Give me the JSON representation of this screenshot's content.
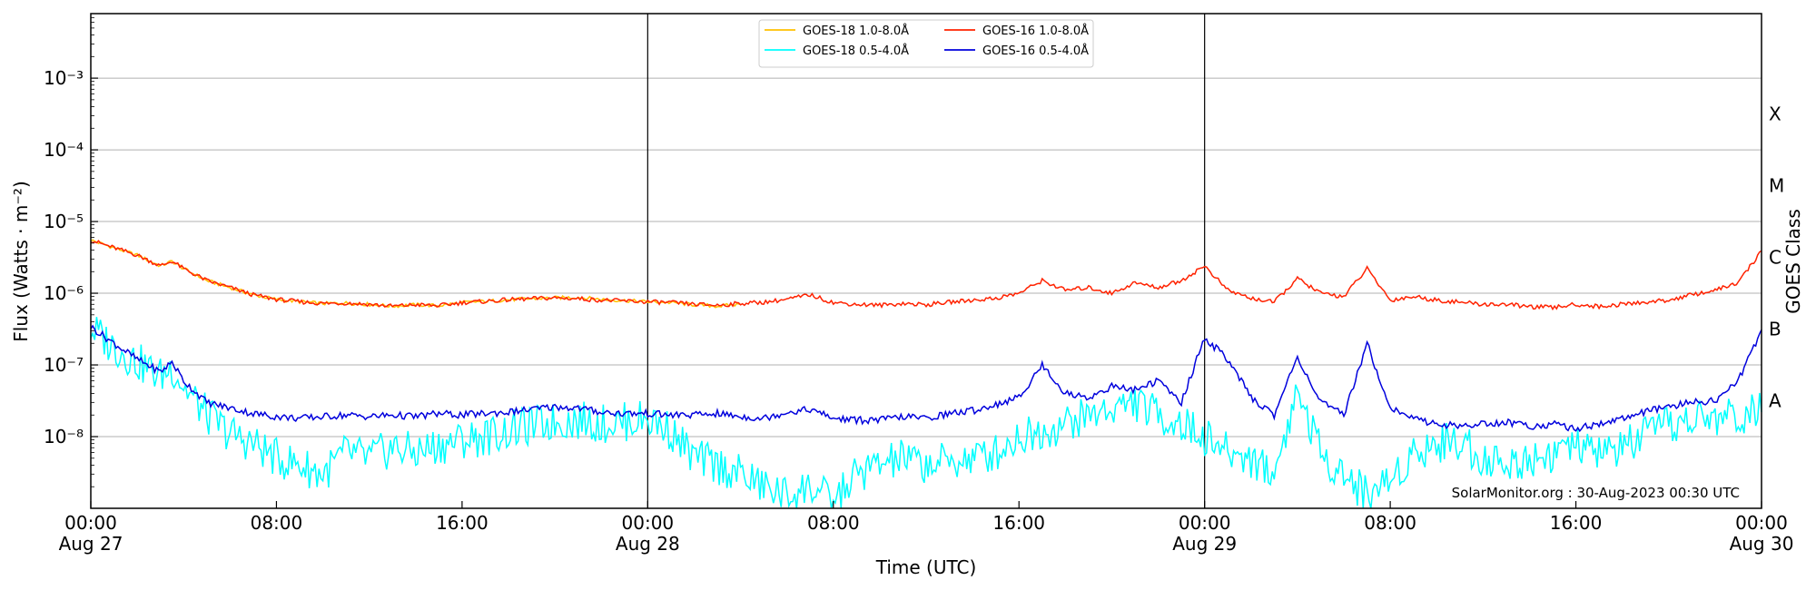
{
  "chart_data": {
    "type": "line",
    "xlabel": "Time (UTC)",
    "ylabel": "Flux (Watts · m⁻²)",
    "ylabel_right": "GOES Class",
    "y_scale": "log",
    "ylim_exponent": [
      -9,
      -2.1
    ],
    "y_ticks": [
      {
        "exp": -8,
        "label": "10⁻⁸"
      },
      {
        "exp": -7,
        "label": "10⁻⁷"
      },
      {
        "exp": -6,
        "label": "10⁻⁶"
      },
      {
        "exp": -5,
        "label": "10⁻⁵"
      },
      {
        "exp": -4,
        "label": "10⁻⁴"
      },
      {
        "exp": -3,
        "label": "10⁻³"
      }
    ],
    "goes_classes": [
      {
        "label": "A",
        "exp": -7.5
      },
      {
        "label": "B",
        "exp": -6.5
      },
      {
        "label": "C",
        "exp": -5.5
      },
      {
        "label": "M",
        "exp": -4.5
      },
      {
        "label": "X",
        "exp": -3.5
      }
    ],
    "x_range_hours": [
      0,
      72
    ],
    "x_ticks": [
      {
        "hour": 0,
        "time": "00:00",
        "date": "Aug 27"
      },
      {
        "hour": 8,
        "time": "08:00",
        "date": ""
      },
      {
        "hour": 16,
        "time": "16:00",
        "date": ""
      },
      {
        "hour": 24,
        "time": "00:00",
        "date": "Aug 28"
      },
      {
        "hour": 32,
        "time": "08:00",
        "date": ""
      },
      {
        "hour": 40,
        "time": "16:00",
        "date": ""
      },
      {
        "hour": 48,
        "time": "00:00",
        "date": "Aug 29"
      },
      {
        "hour": 56,
        "time": "08:00",
        "date": ""
      },
      {
        "hour": 64,
        "time": "16:00",
        "date": ""
      },
      {
        "hour": 72,
        "time": "00:00",
        "date": "Aug 30"
      }
    ],
    "day_dividers_hours": [
      24,
      48
    ],
    "grid": "horizontal",
    "legend_position": "top-center",
    "annotation": "SolarMonitor.org : 30-Aug-2023 00:30 UTC",
    "series": [
      {
        "name": "GOES-18 1.0-8.0Å",
        "color": "#ffc000",
        "x": [
          0,
          1,
          2,
          3,
          3.5,
          4,
          5,
          6,
          7,
          8,
          9,
          10,
          11,
          12,
          13,
          14,
          15,
          16,
          17,
          18,
          19,
          20,
          21,
          22,
          23,
          24,
          25,
          26,
          27,
          28
        ],
        "y": [
          5.5e-06,
          4.3e-06,
          3.4e-06,
          2.4e-06,
          2.8e-06,
          2.2e-06,
          1.5e-06,
          1.2e-06,
          9.5e-07,
          8.2e-07,
          7.6e-07,
          7.2e-07,
          7.3e-07,
          7e-07,
          6.6e-07,
          6.9e-07,
          6.7e-07,
          7.4e-07,
          7.7e-07,
          8.1e-07,
          8.4e-07,
          8.6e-07,
          8.8e-07,
          8.2e-07,
          7.9e-07,
          7.6e-07,
          7.4e-07,
          6.9e-07,
          6.6e-07,
          7e-07
        ]
      },
      {
        "name": "GOES-16 1.0-8.0Å",
        "color": "#ff2200",
        "x": [
          0,
          1,
          2,
          3,
          3.5,
          4,
          5,
          6,
          7,
          8,
          9,
          10,
          11,
          12,
          13,
          14,
          15,
          16,
          17,
          18,
          19,
          20,
          21,
          22,
          23,
          24,
          25,
          26,
          27,
          28,
          29,
          30,
          31,
          32,
          33,
          34,
          35,
          36,
          37,
          38,
          39,
          40,
          41,
          42,
          43,
          44,
          45,
          46,
          47,
          48,
          49,
          50,
          51,
          52,
          53,
          54,
          55,
          56,
          57,
          58,
          59,
          60,
          61,
          62,
          63,
          64,
          65,
          66,
          67,
          68,
          69,
          70,
          71,
          72
        ],
        "y": [
          5.5e-06,
          4.3e-06,
          3.4e-06,
          2.4e-06,
          2.8e-06,
          2.2e-06,
          1.5e-06,
          1.2e-06,
          9.5e-07,
          8.2e-07,
          7.6e-07,
          7.2e-07,
          7.3e-07,
          7e-07,
          6.6e-07,
          6.9e-07,
          6.7e-07,
          7.4e-07,
          7.7e-07,
          8.1e-07,
          8.4e-07,
          8.6e-07,
          8.4e-07,
          8e-07,
          7.8e-07,
          7.6e-07,
          7.4e-07,
          7e-07,
          6.8e-07,
          7.2e-07,
          7.5e-07,
          8.2e-07,
          9.5e-07,
          7.4e-07,
          7e-07,
          6.8e-07,
          7.2e-07,
          6.9e-07,
          7.5e-07,
          8e-07,
          8.5e-07,
          1e-06,
          1.5e-06,
          1.1e-06,
          1.2e-06,
          1e-06,
          1.4e-06,
          1.2e-06,
          1.5e-06,
          2.4e-06,
          1.1e-06,
          8.5e-07,
          7.5e-07,
          1.6e-06,
          1e-06,
          9e-07,
          2.2e-06,
          8e-07,
          9e-07,
          8e-07,
          7.5e-07,
          7e-07,
          7e-07,
          6.5e-07,
          6.3e-07,
          7e-07,
          6.5e-07,
          7e-07,
          7.5e-07,
          8e-07,
          9.5e-07,
          1.1e-06,
          1.4e-06,
          3.9e-06
        ]
      },
      {
        "name": "GOES-18 0.5-4.0Å",
        "color": "#00ffff",
        "x": [
          0,
          1,
          2,
          3,
          3.5,
          4,
          5,
          6,
          7,
          8,
          9,
          10,
          11,
          12,
          13,
          14,
          15,
          16,
          17,
          18,
          19,
          20,
          21,
          22,
          23,
          24,
          25,
          26,
          27,
          28,
          29,
          30,
          31,
          32,
          33,
          34,
          35,
          36,
          37,
          38,
          39,
          40,
          41,
          42,
          43,
          44,
          45,
          46,
          47,
          48,
          49,
          50,
          51,
          52,
          53,
          54,
          55,
          56,
          57,
          58,
          59,
          60,
          61,
          62,
          63,
          64,
          65,
          66,
          67,
          68,
          69,
          70,
          71,
          72
        ],
        "y": [
          3.2e-07,
          1.8e-07,
          1.1e-07,
          7e-08,
          9.5e-08,
          5e-08,
          2e-08,
          1.1e-08,
          8e-09,
          5e-09,
          4e-09,
          3e-09,
          6e-09,
          5e-09,
          7e-09,
          6e-09,
          7.5e-09,
          9e-09,
          1e-08,
          1.2e-08,
          1.4e-08,
          1.6e-08,
          1.7e-08,
          1.5e-08,
          1.6e-08,
          1.8e-08,
          1.2e-08,
          5e-09,
          4e-09,
          3e-09,
          2e-09,
          1.5e-09,
          2e-09,
          1.2e-09,
          3e-09,
          4e-09,
          5e-09,
          4e-09,
          4.5e-09,
          5e-09,
          6e-09,
          1e-08,
          1.2e-08,
          1.5e-08,
          2e-08,
          2.5e-08,
          3e-08,
          2e-08,
          1.5e-08,
          1e-08,
          6e-09,
          5e-09,
          3e-09,
          4.5e-08,
          6e-09,
          3e-09,
          1.5e-09,
          2.5e-09,
          6e-09,
          8e-09,
          9e-09,
          5e-09,
          4e-09,
          5e-09,
          6e-09,
          7e-09,
          6e-09,
          7e-09,
          1e-08,
          1.4e-08,
          1.7e-08,
          1.8e-08,
          2e-08,
          2.2e-08
        ]
      },
      {
        "name": "GOES-16 0.5-4.0Å",
        "color": "#0000dd",
        "x": [
          0,
          1,
          2,
          3,
          3.5,
          4,
          5,
          6,
          7,
          8,
          9,
          10,
          11,
          12,
          13,
          14,
          15,
          16,
          17,
          18,
          19,
          20,
          21,
          22,
          23,
          24,
          25,
          26,
          27,
          28,
          29,
          30,
          31,
          32,
          33,
          34,
          35,
          36,
          37,
          38,
          39,
          40,
          41,
          42,
          43,
          44,
          45,
          46,
          47,
          48,
          49,
          50,
          51,
          52,
          53,
          54,
          55,
          56,
          57,
          58,
          59,
          60,
          61,
          62,
          63,
          64,
          65,
          66,
          67,
          68,
          69,
          70,
          71,
          72
        ],
        "y": [
          3.4e-07,
          2e-07,
          1.2e-07,
          8e-08,
          1.1e-07,
          6e-08,
          3e-08,
          2.5e-08,
          2.1e-08,
          1.9e-08,
          1.8e-08,
          1.9e-08,
          2e-08,
          1.9e-08,
          2e-08,
          1.9e-08,
          2.1e-08,
          2e-08,
          2.1e-08,
          2.2e-08,
          2.4e-08,
          2.6e-08,
          2.5e-08,
          2.2e-08,
          2.1e-08,
          2.1e-08,
          2e-08,
          2e-08,
          2.1e-08,
          1.9e-08,
          1.8e-08,
          2.2e-08,
          2.4e-08,
          1.8e-08,
          1.7e-08,
          1.7e-08,
          1.9e-08,
          1.8e-08,
          2.1e-08,
          2.3e-08,
          2.8e-08,
          3.5e-08,
          1e-07,
          4e-08,
          3.5e-08,
          5e-08,
          4.5e-08,
          6e-08,
          3e-08,
          2.4e-07,
          1.2e-07,
          3.5e-08,
          2e-08,
          1.3e-07,
          3e-08,
          2e-08,
          2e-07,
          2.5e-08,
          1.8e-08,
          1.5e-08,
          1.4e-08,
          1.5e-08,
          1.6e-08,
          1.4e-08,
          1.5e-08,
          1.3e-08,
          1.5e-08,
          1.8e-08,
          2.2e-08,
          2.6e-08,
          3e-08,
          3.2e-08,
          6e-08,
          3.1e-07
        ]
      }
    ]
  }
}
